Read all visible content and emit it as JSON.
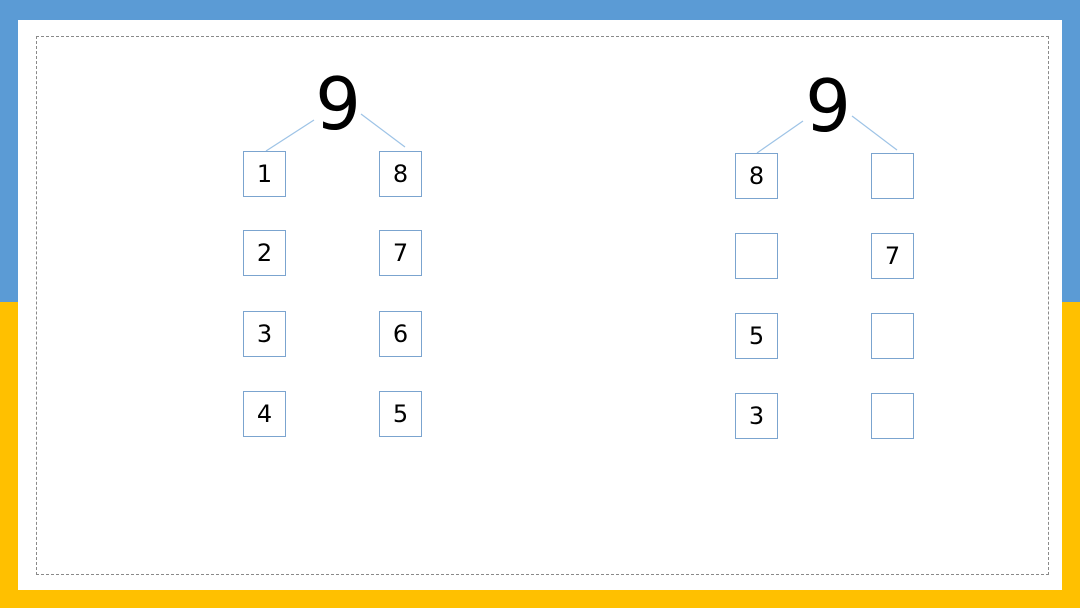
{
  "trees": [
    {
      "top": "9",
      "rows": [
        [
          "1",
          "8"
        ],
        [
          "2",
          "7"
        ],
        [
          "3",
          "6"
        ],
        [
          "4",
          "5"
        ]
      ]
    },
    {
      "top": "9",
      "rows": [
        [
          "8",
          ""
        ],
        [
          "",
          "7"
        ],
        [
          "5",
          ""
        ],
        [
          "3",
          ""
        ]
      ]
    }
  ],
  "colors": {
    "top_band": "#5b9bd5",
    "bottom_band": "#ffc000",
    "box_border": "#7ba4cf",
    "connector": "#9dc3e6"
  }
}
